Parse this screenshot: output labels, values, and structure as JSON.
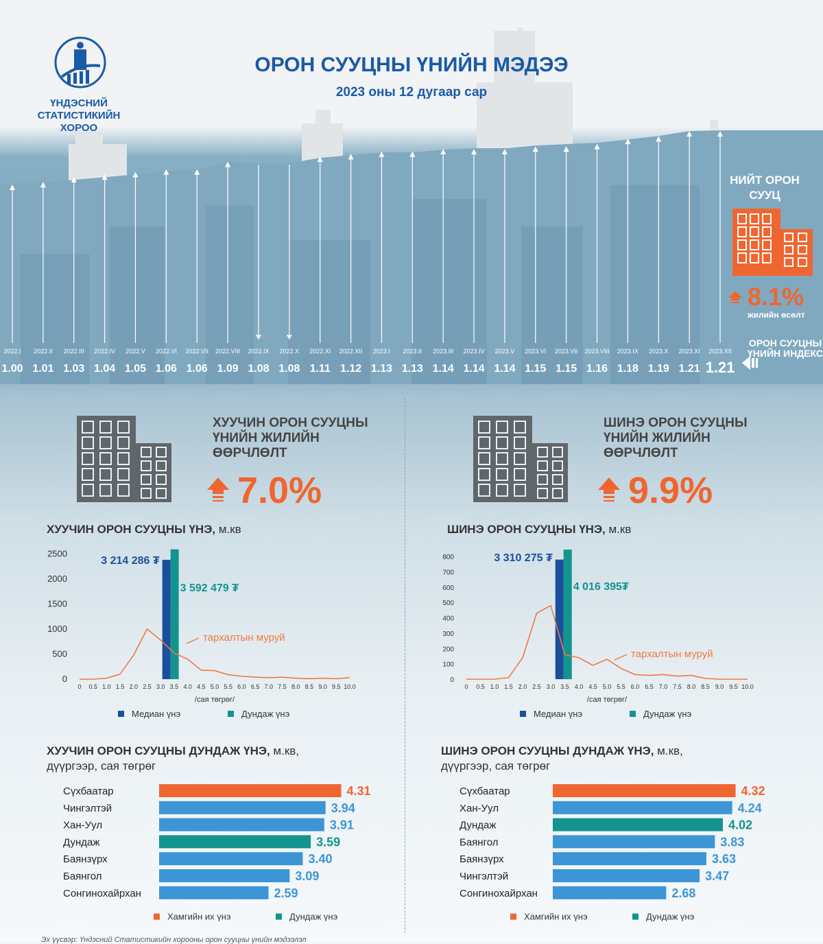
{
  "header": {
    "org_name": "ҮНДЭСНИЙ СТАТИСТИКИЙН ХОРОО",
    "title": "ОРОН СУУЦНЫ ҮНИЙН МЭДЭЭ",
    "subtitle": "2023 оны 12 дугаар сар"
  },
  "total_housing": {
    "title": "НИЙТ ОРОН СУУЦ",
    "growth": "8.1%",
    "growth_label": "жилийн өсөлт",
    "index_label": "ОРОН СУУЦНЫ ҮНИЙН ИНДЕКС"
  },
  "old_housing": {
    "title": "ХУУЧИН ОРОН СУУЦНЫ ҮНИЙН ЖИЛИЙН ӨӨРЧЛӨЛТ",
    "change": "7.0%",
    "price_chart_title": "ХУУЧИН ОРОН СУУЦНЫ ҮНЭ,",
    "price_chart_unit": "м.кв",
    "district_title": "ХУУЧИН ОРОН СУУЦНЫ ДУНДАЖ ҮНЭ,",
    "district_unit": "м.кв,",
    "district_unit2": "дүүргээр, сая төгрөг"
  },
  "new_housing": {
    "title": "ШИНЭ ОРОН СУУЦНЫ ҮНИЙН ЖИЛИЙН ӨӨРЧЛӨЛТ",
    "change": "9.9%",
    "price_chart_title": "ШИНЭ ОРОН СУУЦНЫ ҮНЭ,",
    "price_chart_unit": "м.кв",
    "district_title": "ШИНЭ ОРОН СУУЦНЫ ДУНДАЖ ҮНЭ,",
    "district_unit": "м.кв,",
    "district_unit2": "дүүргээр, сая төгрөг"
  },
  "source": "Эх үүсвэр: Үндэсний Статистикийн хорооны орон сууцны үнийн мэдээлэл",
  "colors": {
    "blue_title": "#1a5aa6",
    "orange": "#ef6630",
    "bar_blue": "#3d95d6",
    "teal": "#13948f",
    "median_blue": "#1b4f9c",
    "curve": "#f07a3f"
  },
  "chart_data": [
    {
      "type": "line",
      "id": "housing-price-index",
      "categories": [
        "2022.I",
        "2022.II",
        "2022.III",
        "2022.IV",
        "2022.V",
        "2022.VI",
        "2022.VII",
        "2022.VIII",
        "2022.IX",
        "2022.X",
        "2022.XI",
        "2022.XII",
        "2023.I",
        "2023.II",
        "2023.III",
        "2023.IV",
        "2023.V",
        "2023.VI",
        "2023.VII",
        "2023.VIII",
        "2023.IX",
        "2023.X",
        "2023.XI",
        "2023.XII"
      ],
      "values": [
        1.0,
        1.01,
        1.03,
        1.04,
        1.05,
        1.06,
        1.06,
        1.09,
        1.08,
        1.08,
        1.11,
        1.12,
        1.13,
        1.13,
        1.14,
        1.14,
        1.14,
        1.15,
        1.15,
        1.16,
        1.18,
        1.19,
        1.21,
        1.21
      ],
      "labels": [
        "1.00",
        "1.01",
        "1.03",
        "1.04",
        "1.05",
        "1.06",
        "1.06",
        "1.09",
        "1.08",
        "1.08",
        "1.11",
        "1.12",
        "1.13",
        "1.13",
        "1.14",
        "1.14",
        "1.14",
        "1.15",
        "1.15",
        "1.16",
        "1.18",
        "1.19",
        "1.21",
        "1.21"
      ]
    },
    {
      "type": "bar",
      "id": "old-price-distribution",
      "x_ticks": [
        "0",
        "0.5",
        "1.0",
        "1.5",
        "2.0",
        "2.5",
        "3.0",
        "3.5",
        "4.0",
        "4.5",
        "5.0",
        "5.5",
        "6.0",
        "6.5",
        "7.0",
        "7.5",
        "8.0",
        "8.5",
        "9.0",
        "9.5",
        "10.0"
      ],
      "y_ticks": [
        "0",
        "500",
        "1000",
        "1500",
        "2000",
        "2500"
      ],
      "ylim": [
        0,
        2600
      ],
      "xlabel": "/сая төгрөг/",
      "curve_label": "тархалтын муруй",
      "curve": [
        0,
        0,
        20,
        100,
        480,
        1000,
        780,
        520,
        400,
        180,
        170,
        90,
        60,
        40,
        30,
        40,
        20,
        10,
        20,
        10,
        30
      ],
      "median": {
        "name": "Медиан үнэ",
        "value": 3.214286,
        "label": "3 214 286 ₮",
        "height": 2380
      },
      "mean": {
        "name": "Дундаж үнэ",
        "value": 3.592479,
        "label": "3 592 479 ₮",
        "height": 2590
      }
    },
    {
      "type": "bar",
      "id": "new-price-distribution",
      "x_ticks": [
        "0",
        "0.5",
        "1.0",
        "1.5",
        "2.0",
        "2.5",
        "3.0",
        "3.5",
        "4.0",
        "4.5",
        "5.0",
        "5.5",
        "6.0",
        "6.5",
        "7.0",
        "7.5",
        "8.0",
        "8.5",
        "9.0",
        "9.5",
        "10.0"
      ],
      "y_ticks": [
        "0",
        "100",
        "200",
        "300",
        "400",
        "500",
        "600",
        "700",
        "800"
      ],
      "ylim": [
        0,
        850
      ],
      "xlabel": "/сая төгрөг/",
      "curve_label": "тархалтын муруй",
      "curve": [
        0,
        0,
        0,
        10,
        140,
        430,
        480,
        160,
        140,
        90,
        130,
        70,
        30,
        25,
        30,
        20,
        25,
        5,
        0,
        0,
        0
      ],
      "median": {
        "name": "Медиан үнэ",
        "value": 3.310275,
        "label": "3 310 275 ₮",
        "height": 780
      },
      "mean": {
        "name": "Дундаж үнэ",
        "value": 4.016395,
        "label": "4 016 395₮",
        "height": 845
      }
    },
    {
      "type": "bar",
      "id": "old-district-prices",
      "categories": [
        "Сүхбаатар",
        "Чингэлтэй",
        "Хан-Уул",
        "Дундаж",
        "Баянзүрх",
        "Баянгол",
        "Сонгинохайрхан"
      ],
      "values": [
        4.31,
        3.94,
        3.91,
        3.59,
        3.4,
        3.09,
        2.59
      ],
      "labels": [
        "4.31",
        "3.94",
        "3.91",
        "3.59",
        "3.40",
        "3.09",
        "2.59"
      ],
      "highlight": [
        "max",
        "",
        "",
        "mean",
        "",
        "",
        ""
      ],
      "legend": [
        "Хамгийн их үнэ",
        "Дундаж үнэ"
      ]
    },
    {
      "type": "bar",
      "id": "new-district-prices",
      "categories": [
        "Сүхбаатар",
        "Хан-Уул",
        "Дундаж",
        "Баянгол",
        "Баянзүрх",
        "Чингэлтэй",
        "Сонгинохайрхан"
      ],
      "values": [
        4.32,
        4.24,
        4.02,
        3.83,
        3.63,
        3.47,
        2.68
      ],
      "labels": [
        "4.32",
        "4.24",
        "4.02",
        "3.83",
        "3.63",
        "3.47",
        "2.68"
      ],
      "highlight": [
        "max",
        "",
        "mean",
        "",
        "",
        "",
        ""
      ],
      "legend": [
        "Хамгийн их үнэ",
        "Дундаж үнэ"
      ]
    }
  ]
}
